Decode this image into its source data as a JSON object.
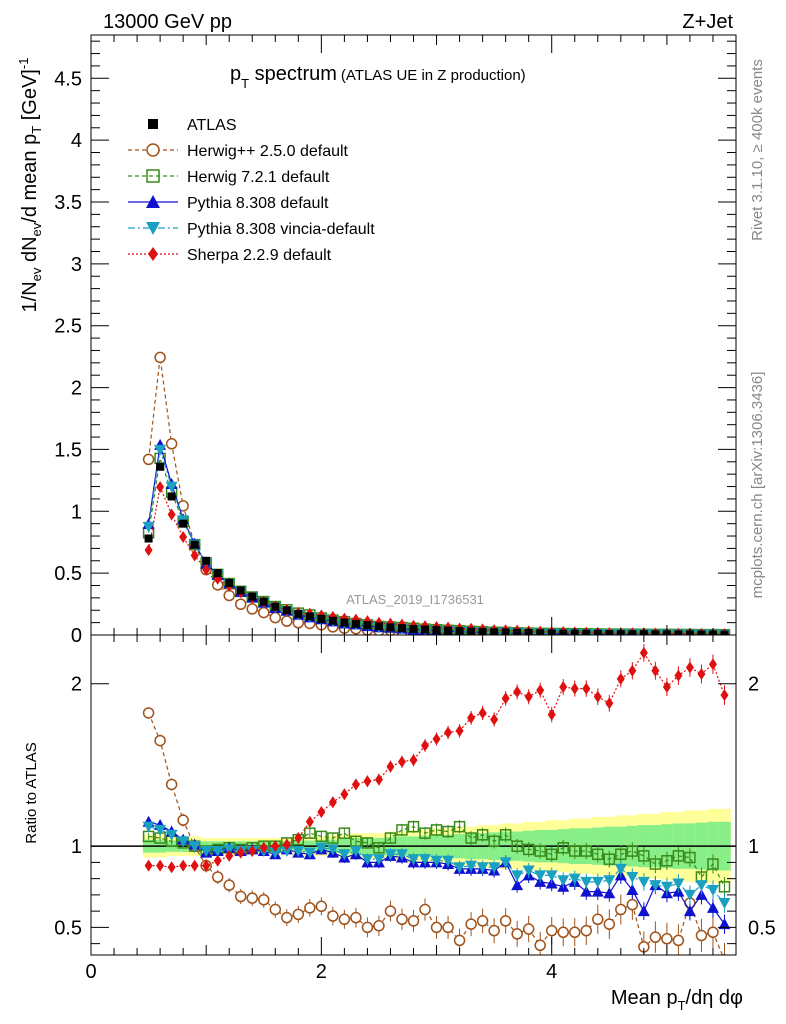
{
  "header": {
    "energy": "13000 GeV pp",
    "process": "Z+Jet"
  },
  "side_labels": {
    "rivet": "Rivet 3.1.10, ≥ 400k events",
    "mcplots": "mcplots.cern.ch [arXiv:1306.3436]"
  },
  "chart_data": {
    "type": "line",
    "title_main": "p",
    "title_sub": "T",
    "title_word": " spectrum",
    "title_extra": "(ATLAS UE in Z production)",
    "watermark": "ATLAS_2019_I1736531",
    "ylabel_top": "1/N_ev dN_ev/d mean p_T [GeV]^-1",
    "ylabel_bottom": "Ratio to ATLAS",
    "xlabel": "Mean p_T/dη dφ",
    "xlim": [
      0,
      5.6
    ],
    "ylim_top": [
      0,
      4.85
    ],
    "ylim_bottom": [
      0.33,
      2.3
    ],
    "x_ticks": [
      "0",
      "2",
      "4"
    ],
    "x_tick_values": [
      0,
      2,
      4
    ],
    "y_ticks_top": [
      "0",
      "0.5",
      "1",
      "1.5",
      "2",
      "2.5",
      "3",
      "3.5",
      "4",
      "4.5"
    ],
    "y_tick_values_top": [
      0,
      0.5,
      1,
      1.5,
      2,
      2.5,
      3,
      3.5,
      4,
      4.5
    ],
    "y_ticks_bottom": [
      "0.5",
      "1",
      "2"
    ],
    "y_tick_values_bottom": [
      0.5,
      1,
      2
    ],
    "x": [
      0.5,
      0.6,
      0.7,
      0.8,
      0.9,
      1.0,
      1.1,
      1.2,
      1.3,
      1.4,
      1.5,
      1.6,
      1.7,
      1.8,
      1.9,
      2.0,
      2.1,
      2.2,
      2.3,
      2.4,
      2.5,
      2.6,
      2.7,
      2.8,
      2.9,
      3.0,
      3.1,
      3.2,
      3.3,
      3.4,
      3.5,
      3.6,
      3.7,
      3.8,
      3.9,
      4.0,
      4.1,
      4.2,
      4.3,
      4.4,
      4.5,
      4.6,
      4.7,
      4.8,
      4.9,
      5.0,
      5.1,
      5.2,
      5.3,
      5.4,
      5.5
    ],
    "atlas": [
      0.78,
      1.36,
      1.12,
      0.9,
      0.73,
      0.6,
      0.5,
      0.42,
      0.36,
      0.31,
      0.27,
      0.23,
      0.2,
      0.17,
      0.15,
      0.13,
      0.115,
      0.1,
      0.09,
      0.08,
      0.07,
      0.062,
      0.055,
      0.049,
      0.044,
      0.039,
      0.035,
      0.031,
      0.028,
      0.025,
      0.022,
      0.02,
      0.018,
      0.016,
      0.014,
      0.013,
      0.012,
      0.011,
      0.01,
      0.009,
      0.008,
      0.0075,
      0.007,
      0.0065,
      0.006,
      0.0055,
      0.005,
      0.0046,
      0.0042,
      0.0038,
      0.0035
    ],
    "series": [
      {
        "name": "Herwig++ 2.5.0 default",
        "color": "#a0521a",
        "marker": "circle-open",
        "dash": "4,3",
        "ratio": [
          1.82,
          1.65,
          1.38,
          1.16,
          1.0,
          0.88,
          0.81,
          0.76,
          0.69,
          0.68,
          0.67,
          0.61,
          0.56,
          0.58,
          0.62,
          0.63,
          0.57,
          0.55,
          0.56,
          0.5,
          0.51,
          0.6,
          0.55,
          0.54,
          0.61,
          0.5,
          0.5,
          0.42,
          0.52,
          0.54,
          0.48,
          0.54,
          0.46,
          0.49,
          0.39,
          0.48,
          0.47,
          0.47,
          0.48,
          0.55,
          0.52,
          0.61,
          0.64,
          0.38,
          0.44,
          0.43,
          0.42,
          0.65,
          0.45,
          0.47,
          0.3
        ]
      },
      {
        "name": "Herwig 7.2.1 default",
        "color": "#3a8a1a",
        "marker": "square-open",
        "dash": "4,3",
        "ratio": [
          1.06,
          1.05,
          1.03,
          1.02,
          1.0,
          0.97,
          0.98,
          0.99,
          0.98,
          0.99,
          1.0,
          1.0,
          1.02,
          1.04,
          1.08,
          1.06,
          1.05,
          1.08,
          1.03,
          1.02,
          0.99,
          1.05,
          1.1,
          1.12,
          1.08,
          1.1,
          1.09,
          1.12,
          1.05,
          1.07,
          1.03,
          1.07,
          1.0,
          0.98,
          0.97,
          0.95,
          0.99,
          0.97,
          0.97,
          0.95,
          0.92,
          0.95,
          0.97,
          0.94,
          0.89,
          0.91,
          0.94,
          0.93,
          0.81,
          0.89,
          0.75
        ]
      },
      {
        "name": "Pythia 8.308 default",
        "color": "#1010d0",
        "marker": "triangle-up",
        "dash": "",
        "ratio": [
          1.15,
          1.13,
          1.09,
          1.04,
          1.01,
          0.96,
          0.97,
          0.99,
          0.97,
          0.98,
          0.97,
          0.95,
          0.98,
          0.96,
          0.95,
          0.98,
          0.96,
          0.93,
          0.95,
          0.9,
          0.9,
          0.94,
          0.93,
          0.9,
          0.9,
          0.9,
          0.89,
          0.86,
          0.86,
          0.86,
          0.85,
          0.9,
          0.76,
          0.82,
          0.78,
          0.77,
          0.75,
          0.78,
          0.72,
          0.72,
          0.71,
          0.82,
          0.73,
          0.6,
          0.76,
          0.71,
          0.72,
          0.6,
          0.7,
          0.62,
          0.52
        ]
      },
      {
        "name": "Pythia 8.308 vincia-default",
        "color": "#1aa0c0",
        "marker": "triangle-down",
        "dash": "7,3,2,3",
        "ratio": [
          1.12,
          1.1,
          1.07,
          1.03,
          1.0,
          0.97,
          0.97,
          0.98,
          0.97,
          0.97,
          0.97,
          0.96,
          0.97,
          0.97,
          0.96,
          0.99,
          0.98,
          0.95,
          0.97,
          0.92,
          0.92,
          0.95,
          0.95,
          0.92,
          0.92,
          0.91,
          0.91,
          0.87,
          0.88,
          0.87,
          0.87,
          0.9,
          0.82,
          0.85,
          0.82,
          0.82,
          0.79,
          0.8,
          0.78,
          0.78,
          0.79,
          0.86,
          0.81,
          0.78,
          0.76,
          0.75,
          0.77,
          0.7,
          0.76,
          0.73,
          0.65
        ]
      },
      {
        "name": "Sherpa 2.2.9 default",
        "color": "#e01010",
        "marker": "diamond",
        "dash": "2,2",
        "ratio": [
          0.88,
          0.88,
          0.87,
          0.88,
          0.88,
          0.88,
          0.91,
          0.94,
          0.96,
          0.97,
          0.99,
          1.0,
          1.01,
          1.05,
          1.15,
          1.21,
          1.27,
          1.32,
          1.38,
          1.4,
          1.41,
          1.49,
          1.52,
          1.53,
          1.62,
          1.66,
          1.7,
          1.71,
          1.79,
          1.82,
          1.78,
          1.91,
          1.95,
          1.92,
          1.96,
          1.81,
          1.98,
          1.97,
          1.97,
          1.92,
          1.88,
          2.03,
          2.08,
          2.19,
          2.08,
          1.98,
          2.05,
          2.1,
          2.06,
          2.12,
          1.93
        ]
      }
    ],
    "legend": [
      {
        "label": "ATLAS",
        "marker": "square-filled",
        "color": "#000000"
      },
      {
        "label": "Herwig++ 2.5.0 default",
        "marker": "circle-open",
        "color": "#a0521a",
        "dash": "4,3"
      },
      {
        "label": "Herwig 7.2.1 default",
        "marker": "square-open",
        "color": "#3a8a1a",
        "dash": "4,3"
      },
      {
        "label": "Pythia 8.308 default",
        "marker": "triangle-up",
        "color": "#1010d0",
        "dash": ""
      },
      {
        "label": "Pythia 8.308 vincia-default",
        "marker": "triangle-down",
        "color": "#1aa0c0",
        "dash": "7,3,2,3"
      },
      {
        "label": "Sherpa 2.2.9 default",
        "marker": "diamond",
        "color": "#e01010",
        "dash": "2,2"
      }
    ],
    "band_yellow_halfwidth": [
      0.07,
      0.07,
      0.06,
      0.06,
      0.06,
      0.05,
      0.05,
      0.05,
      0.05,
      0.05,
      0.05,
      0.05,
      0.05,
      0.06,
      0.06,
      0.06,
      0.07,
      0.07,
      0.08,
      0.08,
      0.08,
      0.09,
      0.09,
      0.1,
      0.1,
      0.11,
      0.11,
      0.12,
      0.12,
      0.13,
      0.13,
      0.14,
      0.14,
      0.15,
      0.15,
      0.16,
      0.16,
      0.17,
      0.17,
      0.18,
      0.18,
      0.19,
      0.19,
      0.2,
      0.2,
      0.21,
      0.21,
      0.22,
      0.22,
      0.23,
      0.23
    ],
    "band_green_halfwidth": [
      0.04,
      0.04,
      0.035,
      0.035,
      0.035,
      0.03,
      0.03,
      0.03,
      0.03,
      0.03,
      0.03,
      0.03,
      0.03,
      0.035,
      0.035,
      0.04,
      0.04,
      0.045,
      0.05,
      0.05,
      0.05,
      0.055,
      0.06,
      0.06,
      0.065,
      0.07,
      0.07,
      0.075,
      0.08,
      0.08,
      0.085,
      0.09,
      0.09,
      0.095,
      0.1,
      0.1,
      0.105,
      0.11,
      0.11,
      0.115,
      0.12,
      0.12,
      0.125,
      0.13,
      0.13,
      0.135,
      0.14,
      0.14,
      0.145,
      0.15,
      0.15
    ]
  }
}
